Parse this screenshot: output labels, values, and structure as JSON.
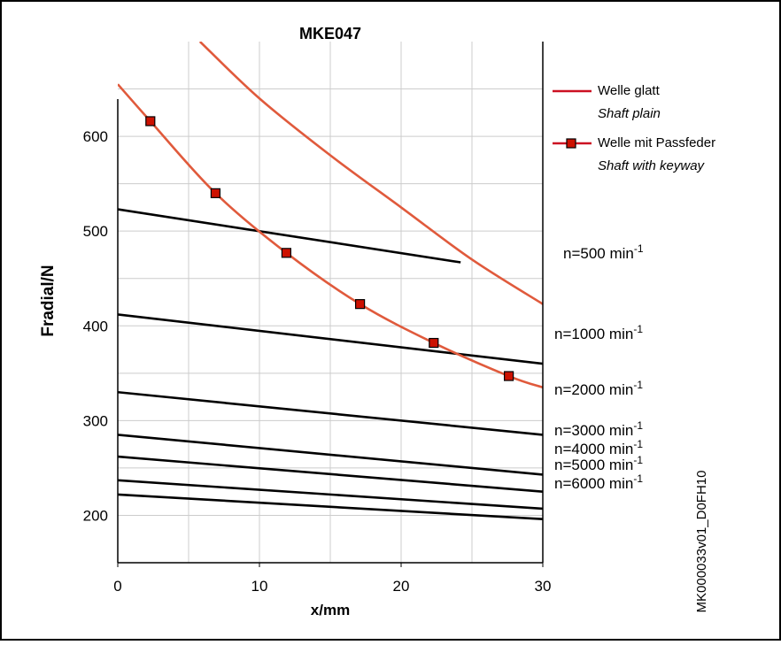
{
  "chart_data": {
    "type": "line",
    "title": "MKE047",
    "xlabel": "x/mm",
    "ylabel": "Fradial/N",
    "xlim": [
      0,
      30
    ],
    "ylim": [
      150,
      700
    ],
    "x_ticks": [
      0,
      10,
      20,
      30
    ],
    "y_ticks": [
      200,
      300,
      400,
      500,
      600
    ],
    "grid": true,
    "figure_id": "MK000033v01_D0FH10",
    "legend": {
      "placement": "top-right",
      "entries": [
        {
          "key": "plain",
          "label": "Welle glatt",
          "sublabel": "Shaft plain",
          "marker": "none"
        },
        {
          "key": "keyway",
          "label": "Welle mit Passfeder",
          "sublabel": "Shaft with keyway",
          "marker": "square"
        }
      ]
    },
    "series": [
      {
        "name": "Welle glatt",
        "sublabel": "Shaft plain",
        "color": "#e05a3c",
        "marker": "none",
        "x": [
          5.8,
          10,
          15,
          20,
          25,
          30
        ],
        "y": [
          700,
          640,
          580,
          525,
          470,
          423
        ]
      },
      {
        "name": "Welle mit Passfeder",
        "sublabel": "Shaft with keyway",
        "color": "#e05a3c",
        "marker": "square",
        "marker_color": "#cc1100",
        "x": [
          0,
          2.3,
          6.9,
          11.9,
          17.1,
          22.3,
          27.6,
          30
        ],
        "y": [
          655,
          616,
          540,
          477,
          423,
          382,
          347,
          335
        ],
        "marker_points": [
          [
            2.3,
            616
          ],
          [
            6.9,
            540
          ],
          [
            11.9,
            477
          ],
          [
            17.1,
            423
          ],
          [
            22.3,
            382
          ],
          [
            27.6,
            347
          ]
        ]
      }
    ],
    "speed_lines": [
      {
        "label": "n=500 min",
        "sup": "-1",
        "x": [
          0,
          24.2
        ],
        "y": [
          523,
          467
        ]
      },
      {
        "label": "n=1000 min",
        "sup": "-1",
        "x": [
          0,
          30
        ],
        "y": [
          412,
          360
        ]
      },
      {
        "label": "n=2000 min",
        "sup": "-1",
        "x": [
          0,
          30
        ],
        "y": [
          330,
          285
        ]
      },
      {
        "label": "n=3000 min",
        "sup": "-1",
        "x": [
          0,
          30
        ],
        "y": [
          285,
          243
        ]
      },
      {
        "label": "n=4000 min",
        "sup": "-1",
        "x": [
          0,
          30
        ],
        "y": [
          262,
          225
        ]
      },
      {
        "label": "n=5000 min",
        "sup": "-1",
        "x": [
          0,
          30
        ],
        "y": [
          237,
          207
        ]
      },
      {
        "label": "n=6000 min",
        "sup": "-1",
        "x": [
          0,
          30
        ],
        "y": [
          222,
          196
        ]
      }
    ],
    "colors": {
      "series_line": "#e05a3c",
      "legend_line": "#cc1122",
      "marker": "#cc1100",
      "speed_line": "#000000",
      "grid": "#cccccc"
    }
  }
}
